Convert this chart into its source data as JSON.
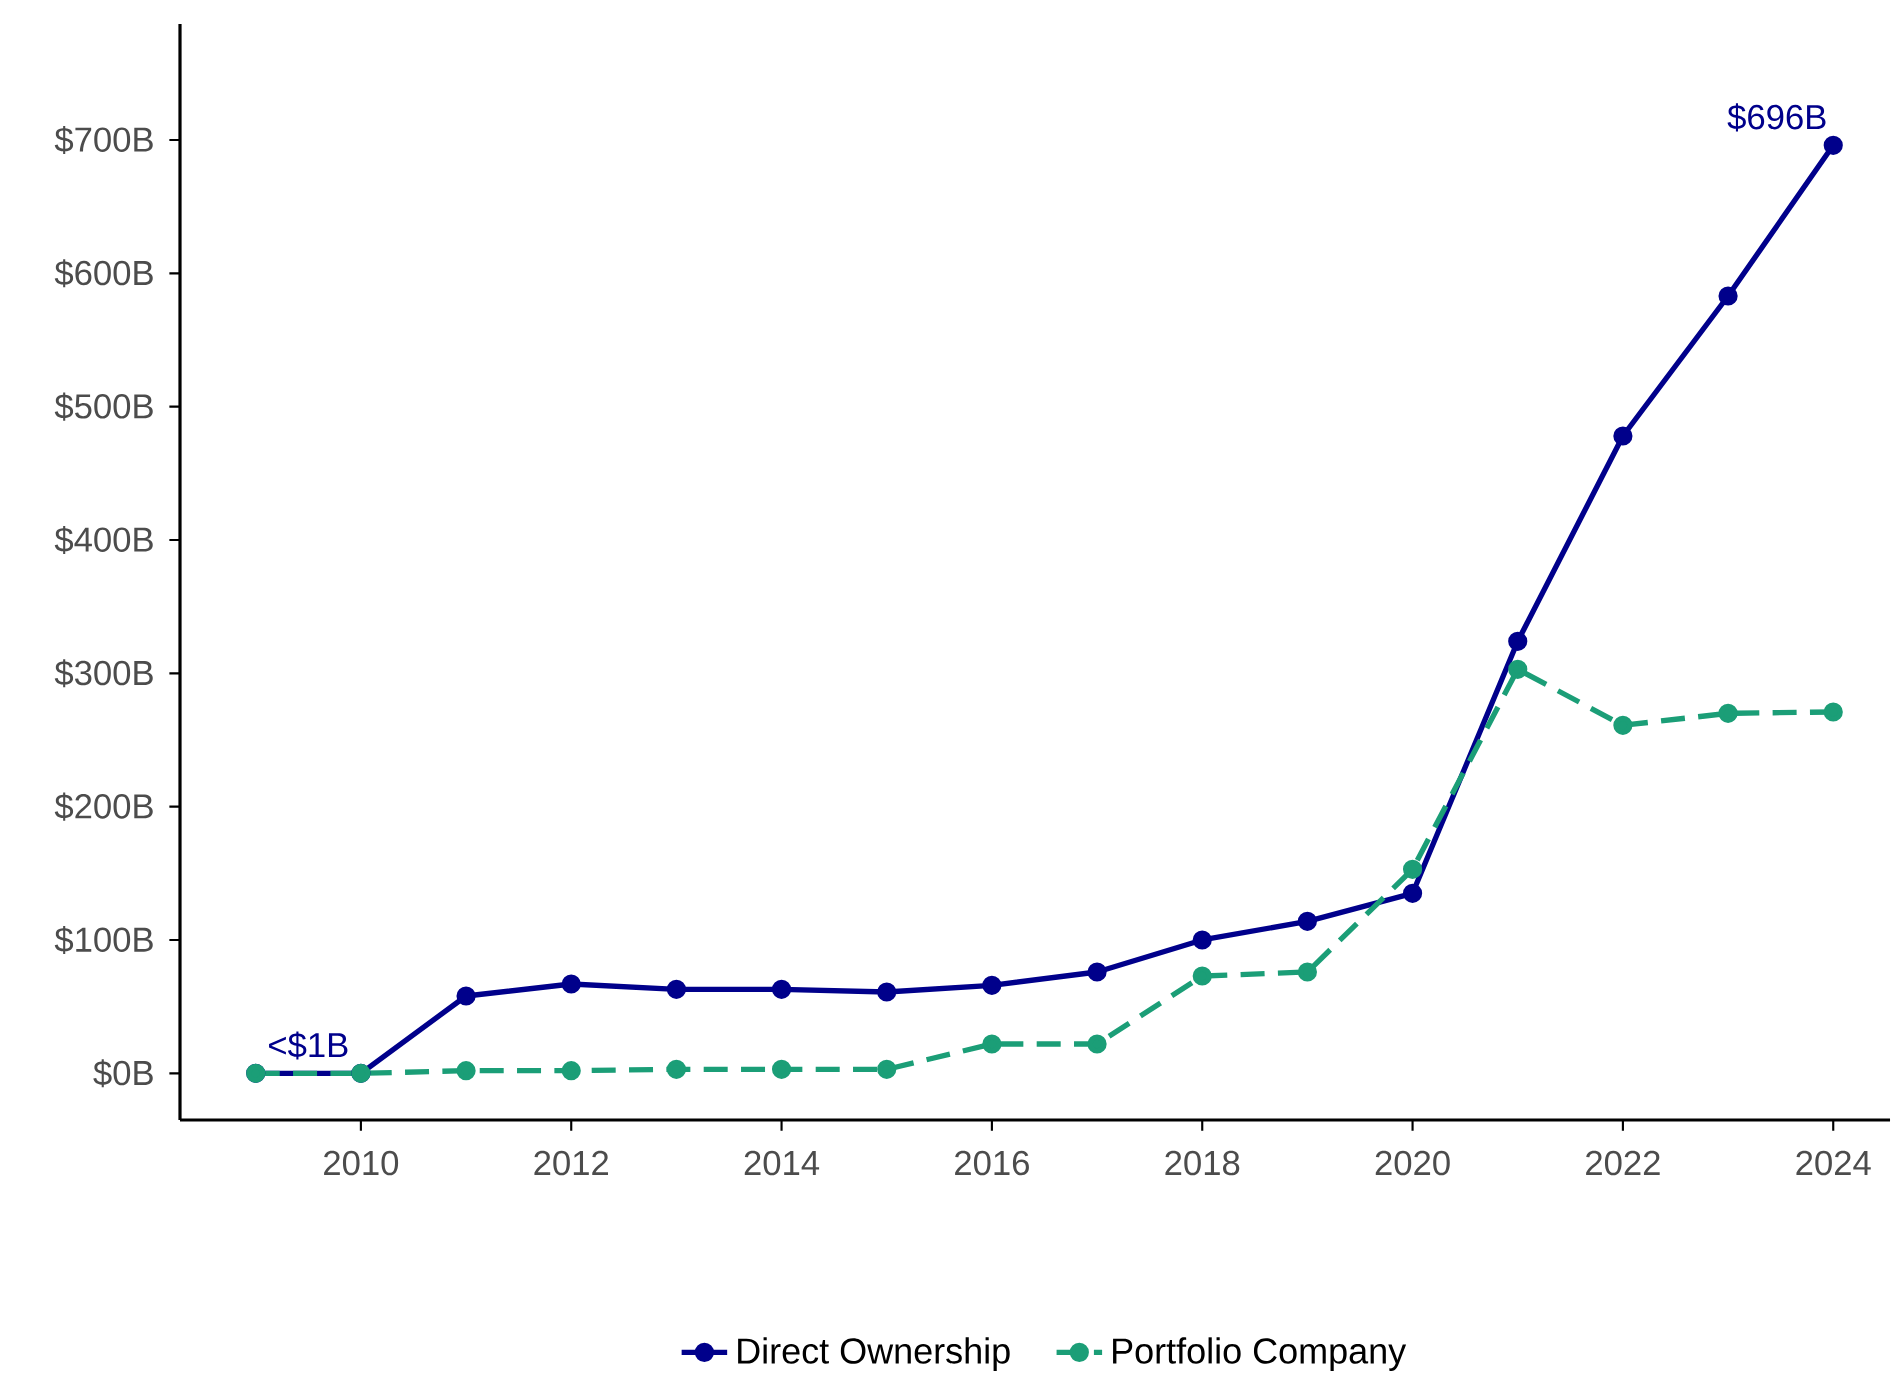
{
  "chart_data": {
    "type": "line",
    "x": [
      2009,
      2010,
      2011,
      2012,
      2013,
      2014,
      2015,
      2016,
      2017,
      2018,
      2019,
      2020,
      2021,
      2022,
      2023,
      2024
    ],
    "series": [
      {
        "name": "Direct Ownership",
        "color": "#00008b",
        "line_style": "solid",
        "values": [
          0,
          0,
          58,
          67,
          63,
          63,
          61,
          66,
          76,
          100,
          114,
          135,
          324,
          478,
          583,
          696
        ]
      },
      {
        "name": "Portfolio Company",
        "color": "#1b9e77",
        "line_style": "dashed",
        "values": [
          0,
          0,
          2,
          2,
          3,
          3,
          3,
          22,
          22,
          73,
          76,
          153,
          303,
          261,
          270,
          271
        ]
      }
    ],
    "xlim": [
      2008.28,
      2024.54
    ],
    "ylim": [
      -35,
      787
    ],
    "xticks": [
      2010,
      2012,
      2014,
      2016,
      2018,
      2020,
      2022,
      2024
    ],
    "yticks": [
      {
        "value": 0,
        "label": "$0B"
      },
      {
        "value": 100,
        "label": "$100B"
      },
      {
        "value": 200,
        "label": "$200B"
      },
      {
        "value": 300,
        "label": "$300B"
      },
      {
        "value": 400,
        "label": "$400B"
      },
      {
        "value": 500,
        "label": "$500B"
      },
      {
        "value": 600,
        "label": "$600B"
      },
      {
        "value": 700,
        "label": "$700B"
      }
    ],
    "annotations": [
      {
        "text": "<$1B",
        "x": 2009.5,
        "y": 0
      },
      {
        "text": "$696B",
        "x": 2024,
        "y": 696
      }
    ],
    "marker": "circle",
    "grid": false,
    "legend": "bottom"
  }
}
